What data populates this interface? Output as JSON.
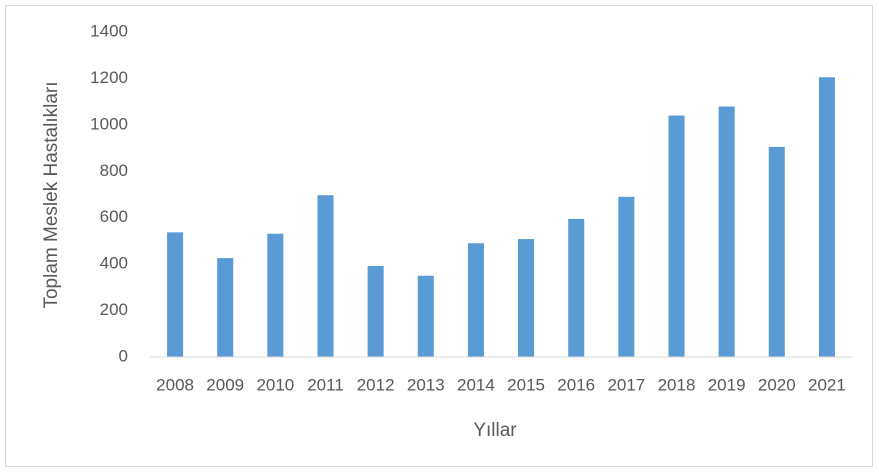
{
  "chart_data": {
    "type": "bar",
    "xlabel": "Yıllar",
    "ylabel": "Toplam Meslek Hastalıkları",
    "categories": [
      "2008",
      "2009",
      "2010",
      "2011",
      "2012",
      "2013",
      "2014",
      "2015",
      "2016",
      "2017",
      "2018",
      "2019",
      "2020",
      "2021"
    ],
    "values": [
      537,
      426,
      531,
      697,
      392,
      350,
      490,
      508,
      595,
      690,
      1040,
      1079,
      905,
      1205
    ],
    "color": "#5b9bd5",
    "ylim": [
      0,
      1400
    ],
    "yticks": [
      0,
      200,
      400,
      600,
      800,
      1000,
      1200,
      1400
    ],
    "grid": false
  }
}
